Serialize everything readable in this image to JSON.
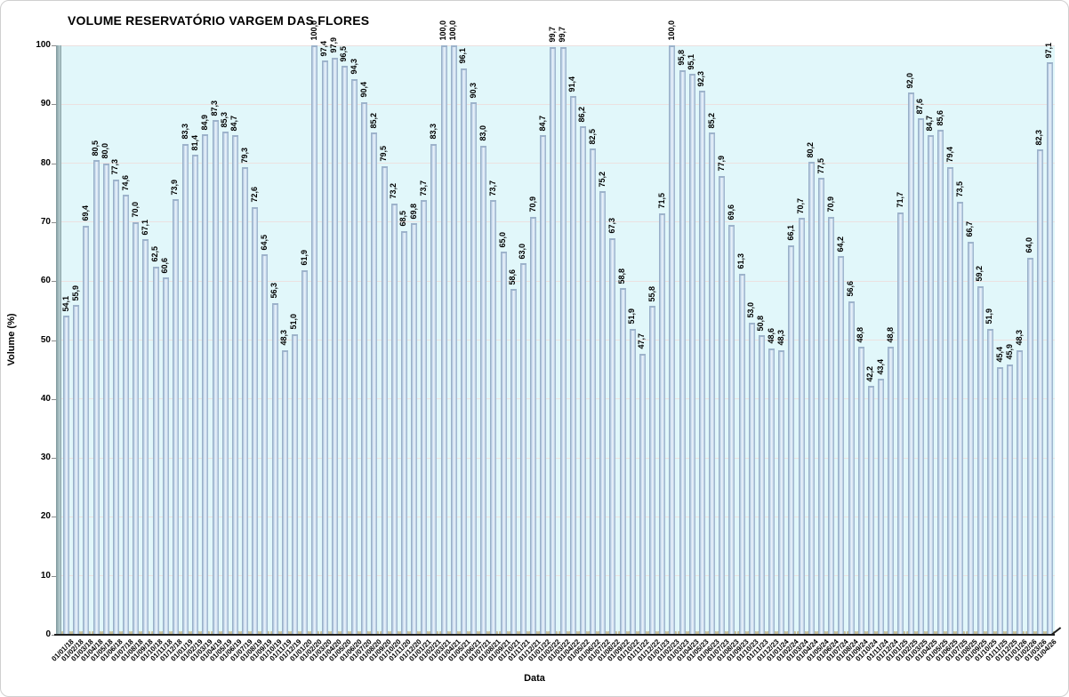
{
  "chart_data": {
    "type": "bar",
    "title": "VOLUME RESERVATÓRIO VARGEM DAS FLORES",
    "xlabel": "Data",
    "ylabel": "Volume (%)",
    "ylim": [
      0,
      100
    ],
    "ytick_interval": 10,
    "ytick_labels": [
      "0",
      "10",
      "20",
      "30",
      "40",
      "50",
      "60",
      "70",
      "80",
      "90",
      "100"
    ],
    "grid": true,
    "legend": "none",
    "decimal_separator": ",",
    "categories": [
      "01/01/18",
      "01/02/18",
      "01/03/18",
      "01/04/18",
      "01/05/18",
      "01/06/18",
      "01/07/18",
      "01/08/18",
      "01/09/18",
      "01/10/18",
      "01/11/18",
      "01/12/18",
      "01/01/19",
      "01/02/19",
      "01/03/19",
      "01/04/19",
      "01/05/19",
      "01/06/19",
      "01/07/19",
      "01/08/19",
      "01/09/19",
      "01/10/19",
      "01/11/19",
      "01/12/19",
      "01/01/20",
      "01/02/20",
      "01/03/20",
      "01/04/20",
      "01/05/20",
      "01/06/20",
      "01/07/20",
      "01/08/20",
      "01/09/20",
      "01/10/20",
      "01/11/20",
      "01/12/20",
      "01/01/21",
      "01/02/21",
      "01/03/21",
      "01/04/21",
      "01/05/21",
      "01/06/21",
      "01/07/21",
      "01/08/21",
      "01/09/21",
      "01/10/21",
      "01/11/21",
      "01/12/21",
      "01/01/22",
      "01/02/22",
      "01/03/22",
      "01/04/22",
      "01/05/22",
      "01/06/22",
      "01/07/22",
      "01/08/22",
      "01/09/22",
      "01/10/22",
      "01/11/22",
      "01/12/22",
      "01/01/23",
      "01/02/23",
      "01/03/23",
      "01/04/23",
      "01/05/23",
      "01/06/23",
      "01/07/23",
      "01/08/23",
      "01/09/23",
      "01/10/23",
      "01/11/23",
      "01/12/23",
      "01/01/24",
      "01/02/24",
      "01/03/24",
      "01/04/24",
      "01/05/24",
      "01/06/24",
      "01/07/24",
      "01/08/24",
      "01/09/24",
      "01/10/24",
      "01/11/24",
      "01/12/24",
      "01/01/25",
      "01/02/25",
      "01/03/25",
      "01/04/25",
      "01/05/25",
      "01/06/25",
      "01/07/25",
      "01/08/25",
      "01/09/25",
      "01/10/25",
      "01/11/25",
      "01/12/25",
      "01/01/26",
      "01/02/26",
      "01/03/26",
      "01/04/26"
    ],
    "values": [
      54.1,
      55.9,
      69.4,
      80.5,
      80.0,
      77.3,
      74.6,
      70.0,
      67.1,
      62.5,
      60.6,
      73.9,
      83.3,
      81.4,
      84.9,
      87.3,
      85.3,
      84.7,
      79.3,
      72.6,
      64.5,
      56.3,
      48.3,
      51.0,
      61.9,
      100.0,
      97.4,
      97.9,
      96.5,
      94.3,
      90.4,
      85.2,
      79.5,
      73.2,
      68.5,
      69.8,
      73.7,
      83.3,
      100.0,
      100.0,
      96.1,
      90.3,
      83.0,
      73.7,
      65.0,
      58.6,
      63.0,
      70.9,
      84.7,
      99.7,
      99.7,
      91.4,
      86.2,
      82.5,
      75.2,
      67.3,
      58.8,
      51.9,
      47.7,
      55.8,
      71.5,
      100.0,
      95.8,
      95.1,
      92.3,
      85.2,
      77.9,
      69.6,
      61.3,
      53.0,
      50.8,
      48.6,
      48.3,
      66.1,
      70.7,
      80.2,
      77.5,
      70.9,
      64.2,
      56.6,
      48.8,
      42.2,
      43.4,
      48.8,
      71.7,
      92.0,
      87.6,
      84.7,
      85.6,
      79.4,
      73.5,
      66.7,
      59.2,
      51.9,
      45.4,
      45.9,
      48.3,
      64.0,
      82.3,
      97.1
    ],
    "colors": {
      "plot_bg": "#E1F7FA",
      "gridline": "#EBE1E0",
      "wall_dark": "#7E989C",
      "wall_light": "#B7CED1",
      "bar_edge_left": "#8AA2BC",
      "bar_body": "#CBDDEF",
      "bar_highlight": "#EFF5FB",
      "bar_edge_right": "#91A9C3",
      "bar_base_tan": "#C9C29B",
      "axis": "#1F1F1F",
      "text": "#000000"
    }
  }
}
